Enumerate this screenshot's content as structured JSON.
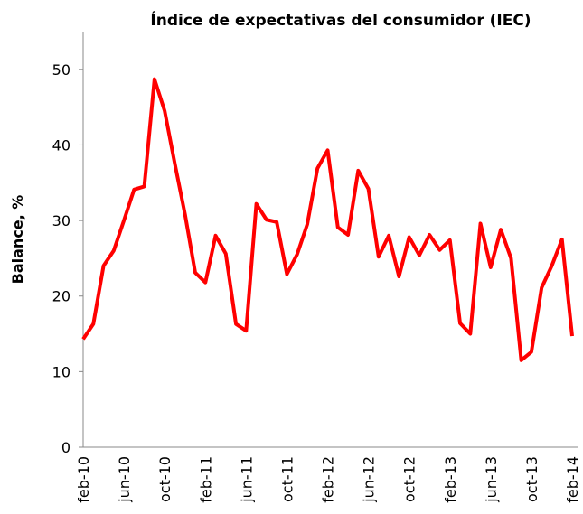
{
  "chart_data": {
    "type": "line",
    "title": "Índice de expectativas del consumidor (IEC)",
    "y_label": "Balance, %",
    "categories": [
      "feb-10",
      null,
      null,
      null,
      "jun-10",
      null,
      null,
      null,
      "oct-10",
      null,
      null,
      null,
      "feb-11",
      null,
      null,
      null,
      "jun-11",
      null,
      null,
      null,
      "oct-11",
      null,
      null,
      null,
      "feb-12",
      null,
      null,
      null,
      "jun-12",
      null,
      null,
      null,
      "oct-12",
      null,
      null,
      null,
      "feb-13",
      null,
      null,
      null,
      "jun-13",
      null,
      null,
      null,
      "oct-13",
      null,
      null,
      null,
      "feb-14"
    ],
    "series": [
      {
        "name": "IEC",
        "color": "#ff0000",
        "values": [
          14.3,
          16.3,
          24,
          26,
          30,
          34.1,
          34.5,
          48.7,
          44.5,
          37.5,
          30.8,
          23.1,
          21.8,
          28,
          25.6,
          16.3,
          15.4,
          32.2,
          30.1,
          29.8,
          22.9,
          25.5,
          29.5,
          36.9,
          39.3,
          29.1,
          28.1,
          36.6,
          34.2,
          25.2,
          28,
          22.6,
          27.8,
          25.4,
          28.1,
          26.1,
          27.4,
          16.4,
          15,
          29.6,
          23.8,
          28.8,
          25,
          11.5,
          12.6,
          21.1,
          24,
          27.5,
          14.7
        ]
      }
    ],
    "ylim": [
      0,
      55
    ],
    "yticks": [
      0,
      10,
      20,
      30,
      40,
      50
    ],
    "grid": false
  }
}
